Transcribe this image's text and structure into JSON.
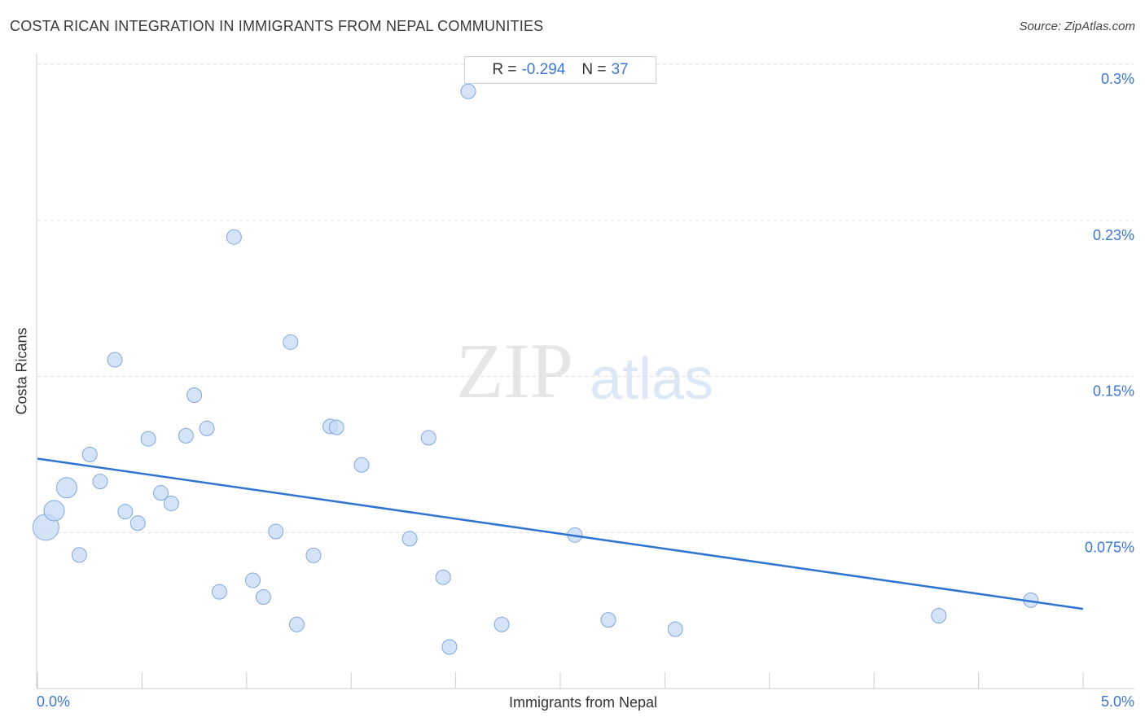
{
  "header": {
    "title": "COSTA RICAN INTEGRATION IN IMMIGRANTS FROM NEPAL COMMUNITIES",
    "source": "Source: ZipAtlas.com"
  },
  "stats": {
    "r_label": "R =",
    "r_value": "-0.294",
    "n_label": "N =",
    "n_value": "37"
  },
  "watermark": {
    "zip": "ZIP",
    "atlas": "atlas"
  },
  "chart_data": {
    "type": "scatter",
    "title": "COSTA RICAN INTEGRATION IN IMMIGRANTS FROM NEPAL COMMUNITIES",
    "xlabel": "Immigrants from Nepal",
    "ylabel": "Costa Ricans",
    "xlim": [
      0,
      5.0
    ],
    "ylim": [
      0,
      0.3
    ],
    "x_tick_labels": [
      "0.0%",
      "5.0%"
    ],
    "y_ticks": [
      {
        "value": 0.3,
        "label": "0.3%"
      },
      {
        "value": 0.225,
        "label": "0.23%"
      },
      {
        "value": 0.15,
        "label": "0.15%"
      },
      {
        "value": 0.075,
        "label": "0.075%"
      }
    ],
    "grid": true,
    "trendline": {
      "x": [
        0,
        5.0
      ],
      "y": [
        0.1105,
        0.0383
      ]
    },
    "points": [
      {
        "x": 0.04,
        "y": 0.0775,
        "size": 3
      },
      {
        "x": 0.08,
        "y": 0.0855,
        "size": 2
      },
      {
        "x": 0.14,
        "y": 0.0965,
        "size": 2
      },
      {
        "x": 0.2,
        "y": 0.0642,
        "size": 1
      },
      {
        "x": 0.25,
        "y": 0.1125,
        "size": 1
      },
      {
        "x": 0.3,
        "y": 0.0995,
        "size": 1
      },
      {
        "x": 0.37,
        "y": 0.158,
        "size": 1
      },
      {
        "x": 0.42,
        "y": 0.085,
        "size": 1
      },
      {
        "x": 0.48,
        "y": 0.0795,
        "size": 1
      },
      {
        "x": 0.53,
        "y": 0.12,
        "size": 1
      },
      {
        "x": 0.59,
        "y": 0.094,
        "size": 1
      },
      {
        "x": 0.64,
        "y": 0.089,
        "size": 1
      },
      {
        "x": 0.71,
        "y": 0.1215,
        "size": 1
      },
      {
        "x": 0.75,
        "y": 0.141,
        "size": 1
      },
      {
        "x": 0.81,
        "y": 0.125,
        "size": 1
      },
      {
        "x": 0.87,
        "y": 0.0465,
        "size": 1
      },
      {
        "x": 0.94,
        "y": 0.217,
        "size": 1
      },
      {
        "x": 1.03,
        "y": 0.052,
        "size": 1
      },
      {
        "x": 1.08,
        "y": 0.044,
        "size": 1
      },
      {
        "x": 1.14,
        "y": 0.0755,
        "size": 1
      },
      {
        "x": 1.21,
        "y": 0.1665,
        "size": 1
      },
      {
        "x": 1.24,
        "y": 0.0308,
        "size": 1
      },
      {
        "x": 1.32,
        "y": 0.064,
        "size": 1
      },
      {
        "x": 1.4,
        "y": 0.126,
        "size": 1
      },
      {
        "x": 1.43,
        "y": 0.1255,
        "size": 1
      },
      {
        "x": 1.55,
        "y": 0.1075,
        "size": 1
      },
      {
        "x": 1.78,
        "y": 0.072,
        "size": 1
      },
      {
        "x": 1.87,
        "y": 0.1205,
        "size": 1
      },
      {
        "x": 1.94,
        "y": 0.0535,
        "size": 1
      },
      {
        "x": 1.97,
        "y": 0.02,
        "size": 1
      },
      {
        "x": 2.06,
        "y": 0.287,
        "size": 1
      },
      {
        "x": 2.22,
        "y": 0.0308,
        "size": 1
      },
      {
        "x": 2.57,
        "y": 0.0738,
        "size": 1
      },
      {
        "x": 2.73,
        "y": 0.033,
        "size": 1
      },
      {
        "x": 3.05,
        "y": 0.0285,
        "size": 1
      },
      {
        "x": 4.31,
        "y": 0.035,
        "size": 1
      },
      {
        "x": 4.75,
        "y": 0.0425,
        "size": 1
      }
    ]
  },
  "colors": {
    "point_fill": "#c7daf5",
    "point_stroke": "#7fa8dd",
    "trendline": "#2f74d0",
    "tick_text": "#3b78d1",
    "grid": "#dddddd"
  }
}
